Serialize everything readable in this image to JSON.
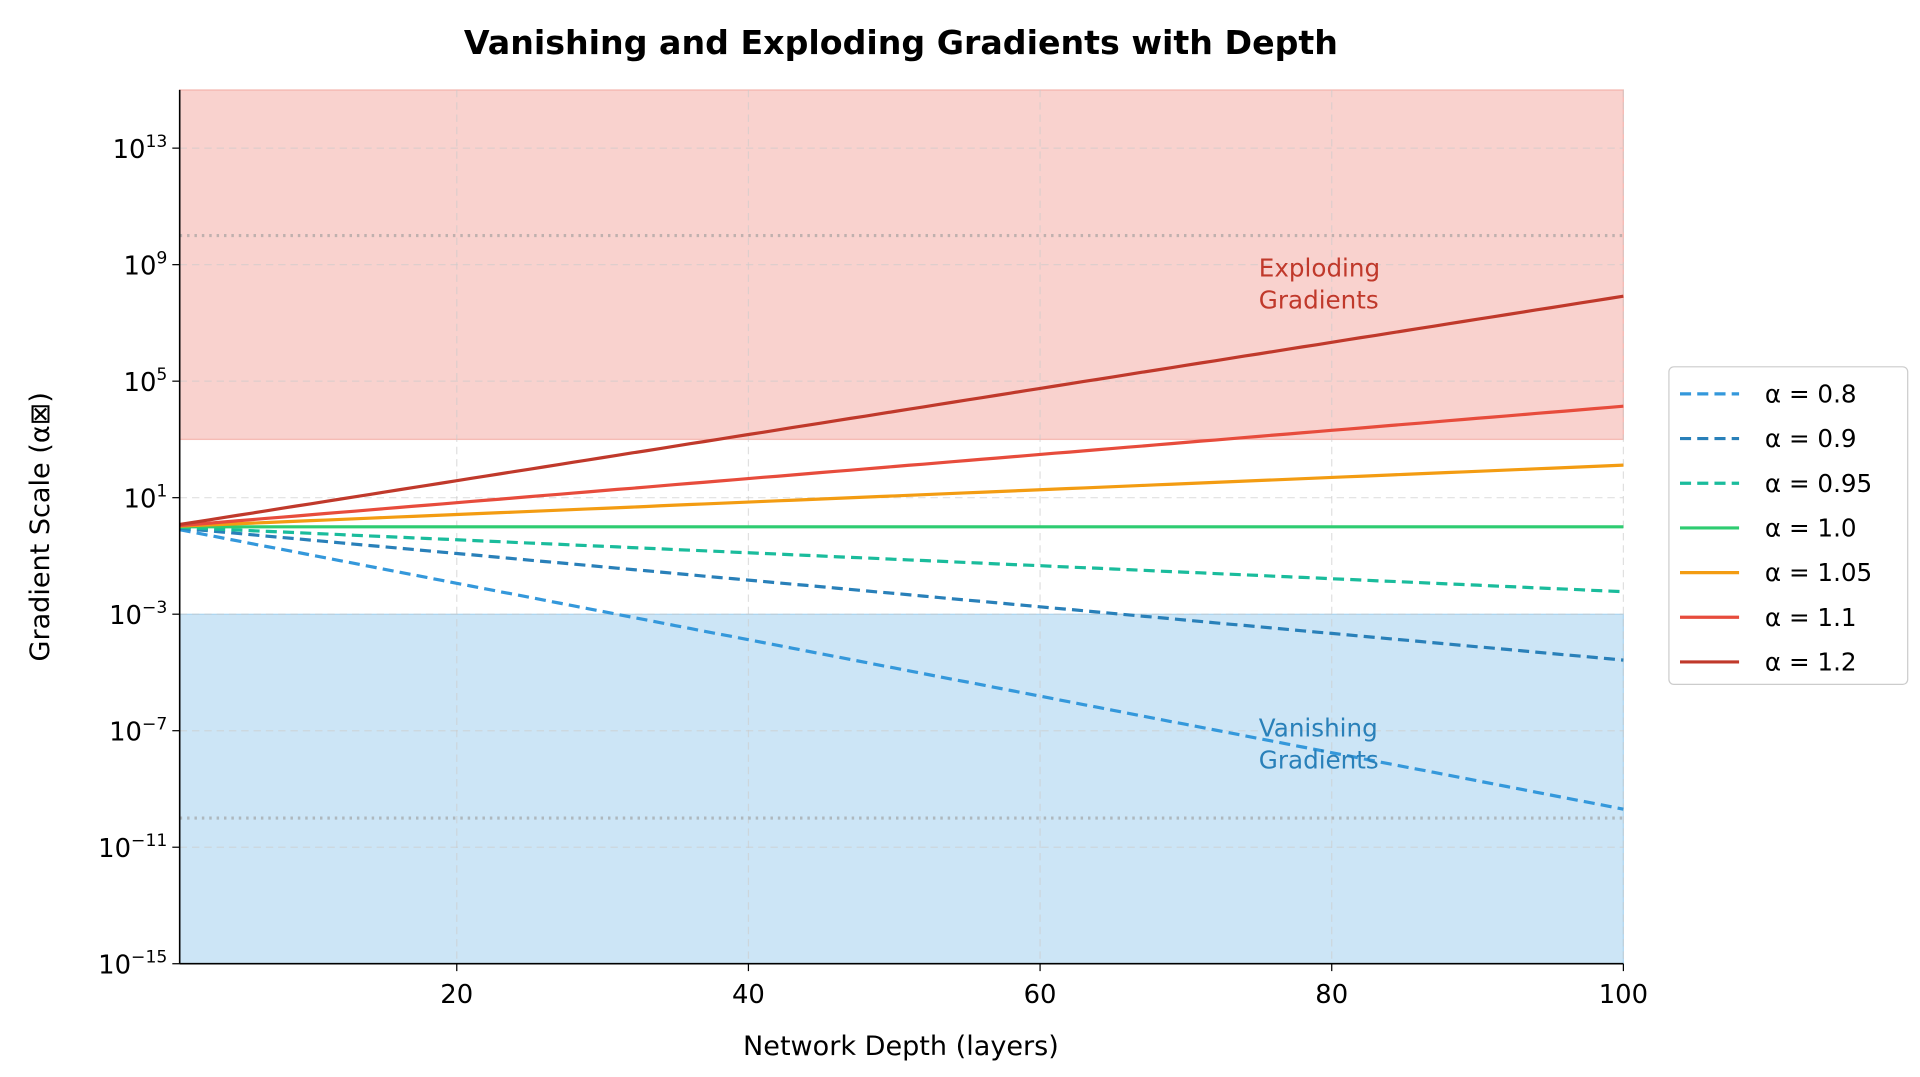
{
  "chart_data": {
    "type": "line",
    "title": "Vanishing and Exploding Gradients with Depth",
    "xlabel": "Network Depth (layers)",
    "ylabel": "Gradient Scale (α⊠)",
    "xlim": [
      1,
      100
    ],
    "ylim_log10": [
      -15,
      15
    ],
    "yscale": "log",
    "x_ticks": [
      20,
      40,
      60,
      80,
      100
    ],
    "y_ticks_log10": [
      -15,
      -11,
      -7,
      -3,
      1,
      5,
      9,
      13
    ],
    "grid": true,
    "legend_position": "center-right outside",
    "series": [
      {
        "name": "α = 0.8",
        "alpha": 0.8,
        "color": "#3498db",
        "dashed": true
      },
      {
        "name": "α = 0.9",
        "alpha": 0.9,
        "color": "#2980b9",
        "dashed": true
      },
      {
        "name": "α = 0.95",
        "alpha": 0.95,
        "color": "#1abc9c",
        "dashed": true
      },
      {
        "name": "α = 1.0",
        "alpha": 1.0,
        "color": "#2ecc71",
        "dashed": false
      },
      {
        "name": "α = 1.05",
        "alpha": 1.05,
        "color": "#f39c12",
        "dashed": false
      },
      {
        "name": "α = 1.1",
        "alpha": 1.1,
        "color": "#e74c3c",
        "dashed": false
      },
      {
        "name": "α = 1.2",
        "alpha": 1.2,
        "color": "#c0392b",
        "dashed": false
      }
    ],
    "regions": [
      {
        "name": "exploding",
        "from_log10": 3,
        "to_log10": 15,
        "color": "#e74c3c"
      },
      {
        "name": "vanishing",
        "from_log10": -15,
        "to_log10": -3,
        "color": "#3498db"
      }
    ],
    "reference_lines_log10": [
      10,
      -10
    ],
    "annotations": [
      {
        "lines": [
          "Exploding",
          "Gradients"
        ],
        "x": 75,
        "log10_y": 8.6,
        "color": "#c0392b"
      },
      {
        "lines": [
          "Vanishing",
          "Gradients"
        ],
        "x": 75,
        "log10_y": -7.2,
        "color": "#2980b9"
      }
    ]
  }
}
